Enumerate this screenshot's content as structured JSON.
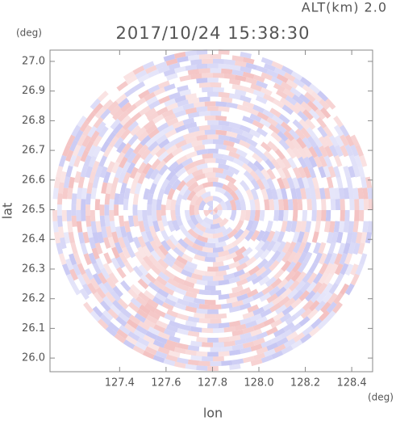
{
  "chart_data": {
    "type": "image",
    "title": "2017/10/24 15:38:30",
    "subtitle": "ALT(km) 2.0",
    "x_label": "lon",
    "y_label": "lat",
    "x_unit": "(deg)",
    "y_unit": "(deg)",
    "xlim": [
      127.1,
      128.49
    ],
    "xticks": [
      127.4,
      127.6,
      127.8,
      {
        "value": 128.0,
        "label": "128.0"
      },
      128.2,
      128.4
    ],
    "ylim": [
      25.954,
      27.038
    ],
    "yticks": [
      {
        "value": 26.0,
        "label": "26.0"
      },
      26.1,
      26.2,
      26.3,
      26.4,
      26.5,
      26.6,
      26.7,
      26.8,
      26.9,
      {
        "value": 27.0,
        "label": "27.0"
      }
    ],
    "grid": false
  }
}
